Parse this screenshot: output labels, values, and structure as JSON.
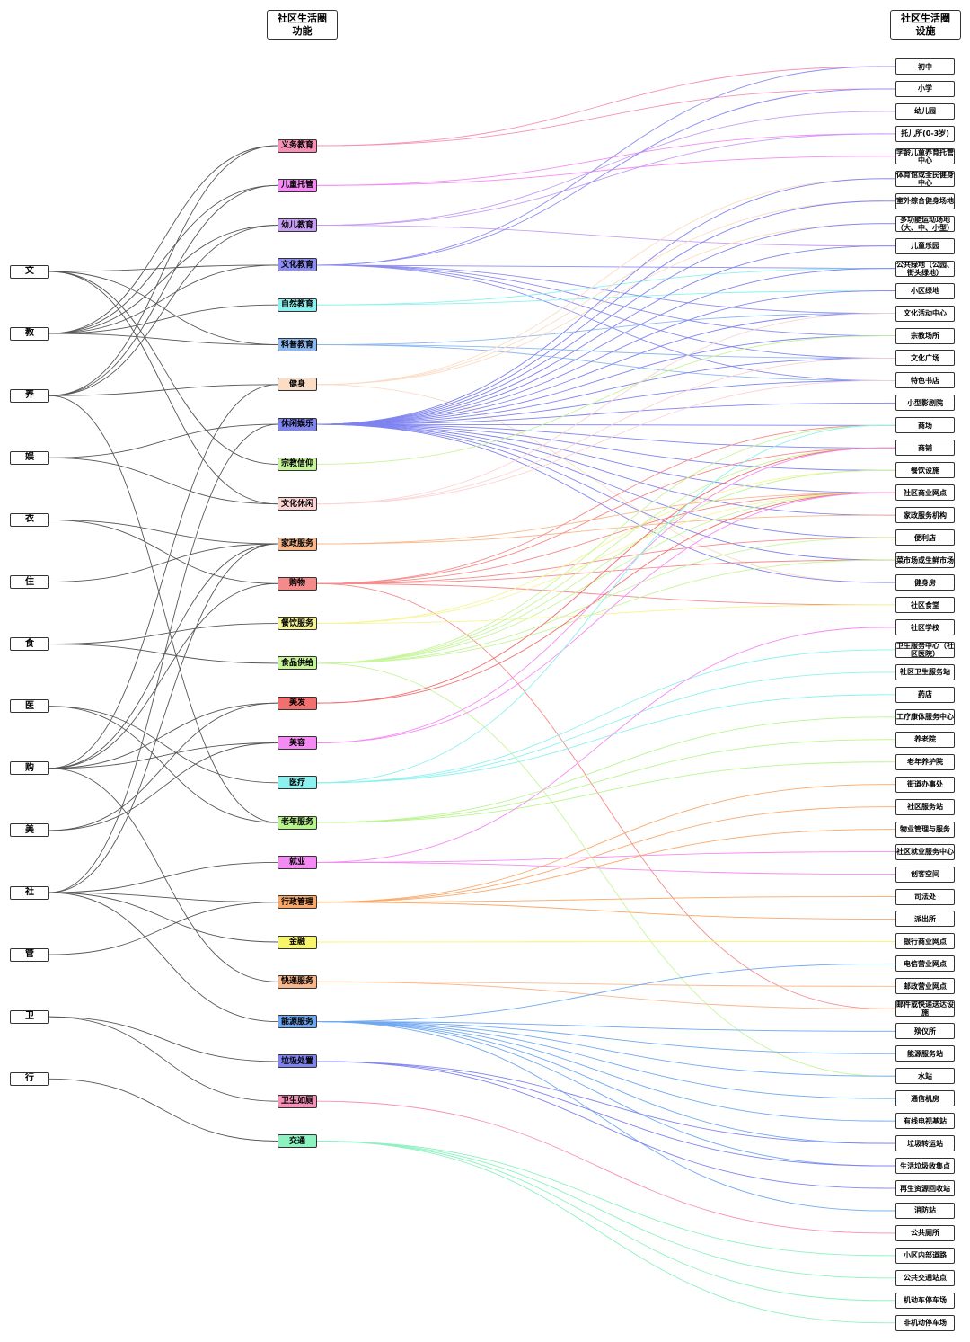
{
  "headers": {
    "functions": [
      "社区生活圈",
      "功能"
    ],
    "facilities": [
      "社区生活圈",
      "设施"
    ]
  },
  "left_nodes": [
    "文",
    "教",
    "养",
    "娱",
    "衣",
    "住",
    "食",
    "医",
    "购",
    "美",
    "社",
    "管",
    "卫",
    "行"
  ],
  "mid_nodes": [
    {
      "label": "义务教育",
      "color": "#f78fb7"
    },
    {
      "label": "儿童托管",
      "color": "#f58af5"
    },
    {
      "label": "幼儿教育",
      "color": "#c79cf5"
    },
    {
      "label": "文化教育",
      "color": "#8c8cf2"
    },
    {
      "label": "自然教育",
      "color": "#8cf2f0"
    },
    {
      "label": "科普教育",
      "color": "#8cb8f2"
    },
    {
      "label": "健身",
      "color": "#fbdcc4"
    },
    {
      "label": "休闲娱乐",
      "color": "#7f83f0"
    },
    {
      "label": "宗教信仰",
      "color": "#c6f59a"
    },
    {
      "label": "文化休闲",
      "color": "#fcd4d4"
    },
    {
      "label": "家政服务",
      "color": "#f9b88c"
    },
    {
      "label": "购物",
      "color": "#f58a8a"
    },
    {
      "label": "餐饮服务",
      "color": "#f6f59a"
    },
    {
      "label": "食品供给",
      "color": "#c6f59a"
    },
    {
      "label": "美发",
      "color": "#f26f6f"
    },
    {
      "label": "美容",
      "color": "#f58af5"
    },
    {
      "label": "医疗",
      "color": "#8cf2f0"
    },
    {
      "label": "老年服务",
      "color": "#b8f58c"
    },
    {
      "label": "就业",
      "color": "#f58af5"
    },
    {
      "label": "行政管理",
      "color": "#f9a86a"
    },
    {
      "label": "金融",
      "color": "#f7f56a"
    },
    {
      "label": "快递服务",
      "color": "#f9b88c"
    },
    {
      "label": "能源服务",
      "color": "#6fa8f2"
    },
    {
      "label": "垃圾处置",
      "color": "#7f83f0"
    },
    {
      "label": "卫生如厕",
      "color": "#f78fb7"
    },
    {
      "label": "交通",
      "color": "#8cf2c0"
    }
  ],
  "right_nodes": [
    "初中",
    "小学",
    "幼儿园",
    "托儿所(0-3岁)",
    "学龄儿童养育托管中心",
    "体育馆或全民健身中心",
    "室外综合健身场地",
    "多功能运动场地（大、中、小型）",
    "儿童乐园",
    "公共绿地（公园、街头绿地）",
    "小区绿地",
    "文化活动中心",
    "宗教场所",
    "文化广场",
    "特色书店",
    "小型影剧院",
    "商场",
    "商铺",
    "餐饮设施",
    "社区商业网点",
    "家政服务机构",
    "便利店",
    "菜市场或生鲜市场",
    "健身房",
    "社区食堂",
    "社区学校",
    "卫生服务中心（社区医院）",
    "社区卫生服务站",
    "药店",
    "工疗康体服务中心",
    "养老院",
    "老年养护院",
    "街道办事处",
    "社区服务站",
    "物业管理与服务",
    "社区就业服务中心",
    "创客空间",
    "司法处",
    "派出所",
    "银行商业网点",
    "电信营业网点",
    "邮政营业网点",
    "邮件或快递送达设施",
    "殡仪所",
    "能源服务站",
    "水站",
    "通信机房",
    "有线电视基站",
    "垃圾转运站",
    "生活垃圾收集点",
    "再生资源回收站",
    "消防站",
    "公共厕所",
    "小区内部道路",
    "公共交通站点",
    "机动车停车场",
    "非机动停车场"
  ],
  "left_links": [
    [
      0,
      3
    ],
    [
      0,
      5
    ],
    [
      0,
      9
    ],
    [
      0,
      8
    ],
    [
      1,
      0
    ],
    [
      1,
      1
    ],
    [
      1,
      2
    ],
    [
      1,
      3
    ],
    [
      1,
      4
    ],
    [
      1,
      5
    ],
    [
      2,
      6
    ],
    [
      2,
      17
    ],
    [
      2,
      0
    ],
    [
      2,
      1
    ],
    [
      2,
      2
    ],
    [
      3,
      7
    ],
    [
      3,
      9
    ],
    [
      4,
      11
    ],
    [
      4,
      10
    ],
    [
      5,
      10
    ],
    [
      6,
      12
    ],
    [
      6,
      13
    ],
    [
      7,
      16
    ],
    [
      7,
      17
    ],
    [
      8,
      11
    ],
    [
      8,
      14
    ],
    [
      8,
      15
    ],
    [
      8,
      21
    ],
    [
      8,
      6
    ],
    [
      8,
      10
    ],
    [
      9,
      14
    ],
    [
      9,
      15
    ],
    [
      10,
      18
    ],
    [
      10,
      19
    ],
    [
      10,
      20
    ],
    [
      10,
      7
    ],
    [
      10,
      22
    ],
    [
      10,
      10
    ],
    [
      11,
      19
    ],
    [
      12,
      23
    ],
    [
      12,
      24
    ],
    [
      13,
      25
    ]
  ],
  "right_links": [
    [
      0,
      0
    ],
    [
      0,
      1
    ],
    [
      1,
      3
    ],
    [
      1,
      4
    ],
    [
      2,
      2
    ],
    [
      2,
      3
    ],
    [
      2,
      8
    ],
    [
      3,
      0
    ],
    [
      3,
      1
    ],
    [
      3,
      11
    ],
    [
      3,
      12
    ],
    [
      3,
      13
    ],
    [
      3,
      14
    ],
    [
      3,
      9
    ],
    [
      4,
      9
    ],
    [
      4,
      10
    ],
    [
      5,
      11
    ],
    [
      5,
      14
    ],
    [
      5,
      13
    ],
    [
      6,
      5
    ],
    [
      6,
      6
    ],
    [
      6,
      7
    ],
    [
      6,
      23
    ],
    [
      7,
      5
    ],
    [
      7,
      6
    ],
    [
      7,
      7
    ],
    [
      7,
      8
    ],
    [
      7,
      9
    ],
    [
      7,
      10
    ],
    [
      7,
      11
    ],
    [
      7,
      12
    ],
    [
      7,
      13
    ],
    [
      7,
      14
    ],
    [
      7,
      15
    ],
    [
      7,
      16
    ],
    [
      7,
      17
    ],
    [
      7,
      18
    ],
    [
      7,
      19
    ],
    [
      7,
      20
    ],
    [
      7,
      21
    ],
    [
      7,
      22
    ],
    [
      7,
      23
    ],
    [
      8,
      12
    ],
    [
      9,
      11
    ],
    [
      9,
      13
    ],
    [
      9,
      14
    ],
    [
      10,
      20
    ],
    [
      10,
      19
    ],
    [
      11,
      16
    ],
    [
      11,
      17
    ],
    [
      11,
      19
    ],
    [
      11,
      21
    ],
    [
      11,
      22
    ],
    [
      11,
      24
    ],
    [
      11,
      42
    ],
    [
      12,
      18
    ],
    [
      12,
      24
    ],
    [
      12,
      19
    ],
    [
      13,
      16
    ],
    [
      13,
      17
    ],
    [
      13,
      18
    ],
    [
      13,
      19
    ],
    [
      13,
      21
    ],
    [
      13,
      22
    ],
    [
      13,
      45
    ],
    [
      14,
      17
    ],
    [
      14,
      19
    ],
    [
      15,
      17
    ],
    [
      15,
      19
    ],
    [
      16,
      26
    ],
    [
      16,
      27
    ],
    [
      16,
      28
    ],
    [
      16,
      16
    ],
    [
      17,
      29
    ],
    [
      17,
      30
    ],
    [
      17,
      31
    ],
    [
      18,
      25
    ],
    [
      18,
      35
    ],
    [
      18,
      36
    ],
    [
      19,
      32
    ],
    [
      19,
      33
    ],
    [
      19,
      34
    ],
    [
      19,
      37
    ],
    [
      19,
      38
    ],
    [
      20,
      39
    ],
    [
      21,
      41
    ],
    [
      21,
      42
    ],
    [
      22,
      40
    ],
    [
      22,
      43
    ],
    [
      22,
      44
    ],
    [
      22,
      45
    ],
    [
      22,
      46
    ],
    [
      22,
      47
    ],
    [
      22,
      48
    ],
    [
      22,
      49
    ],
    [
      22,
      51
    ],
    [
      23,
      48
    ],
    [
      23,
      49
    ],
    [
      23,
      50
    ],
    [
      24,
      52
    ],
    [
      25,
      53
    ],
    [
      25,
      54
    ],
    [
      25,
      55
    ],
    [
      25,
      56
    ]
  ]
}
